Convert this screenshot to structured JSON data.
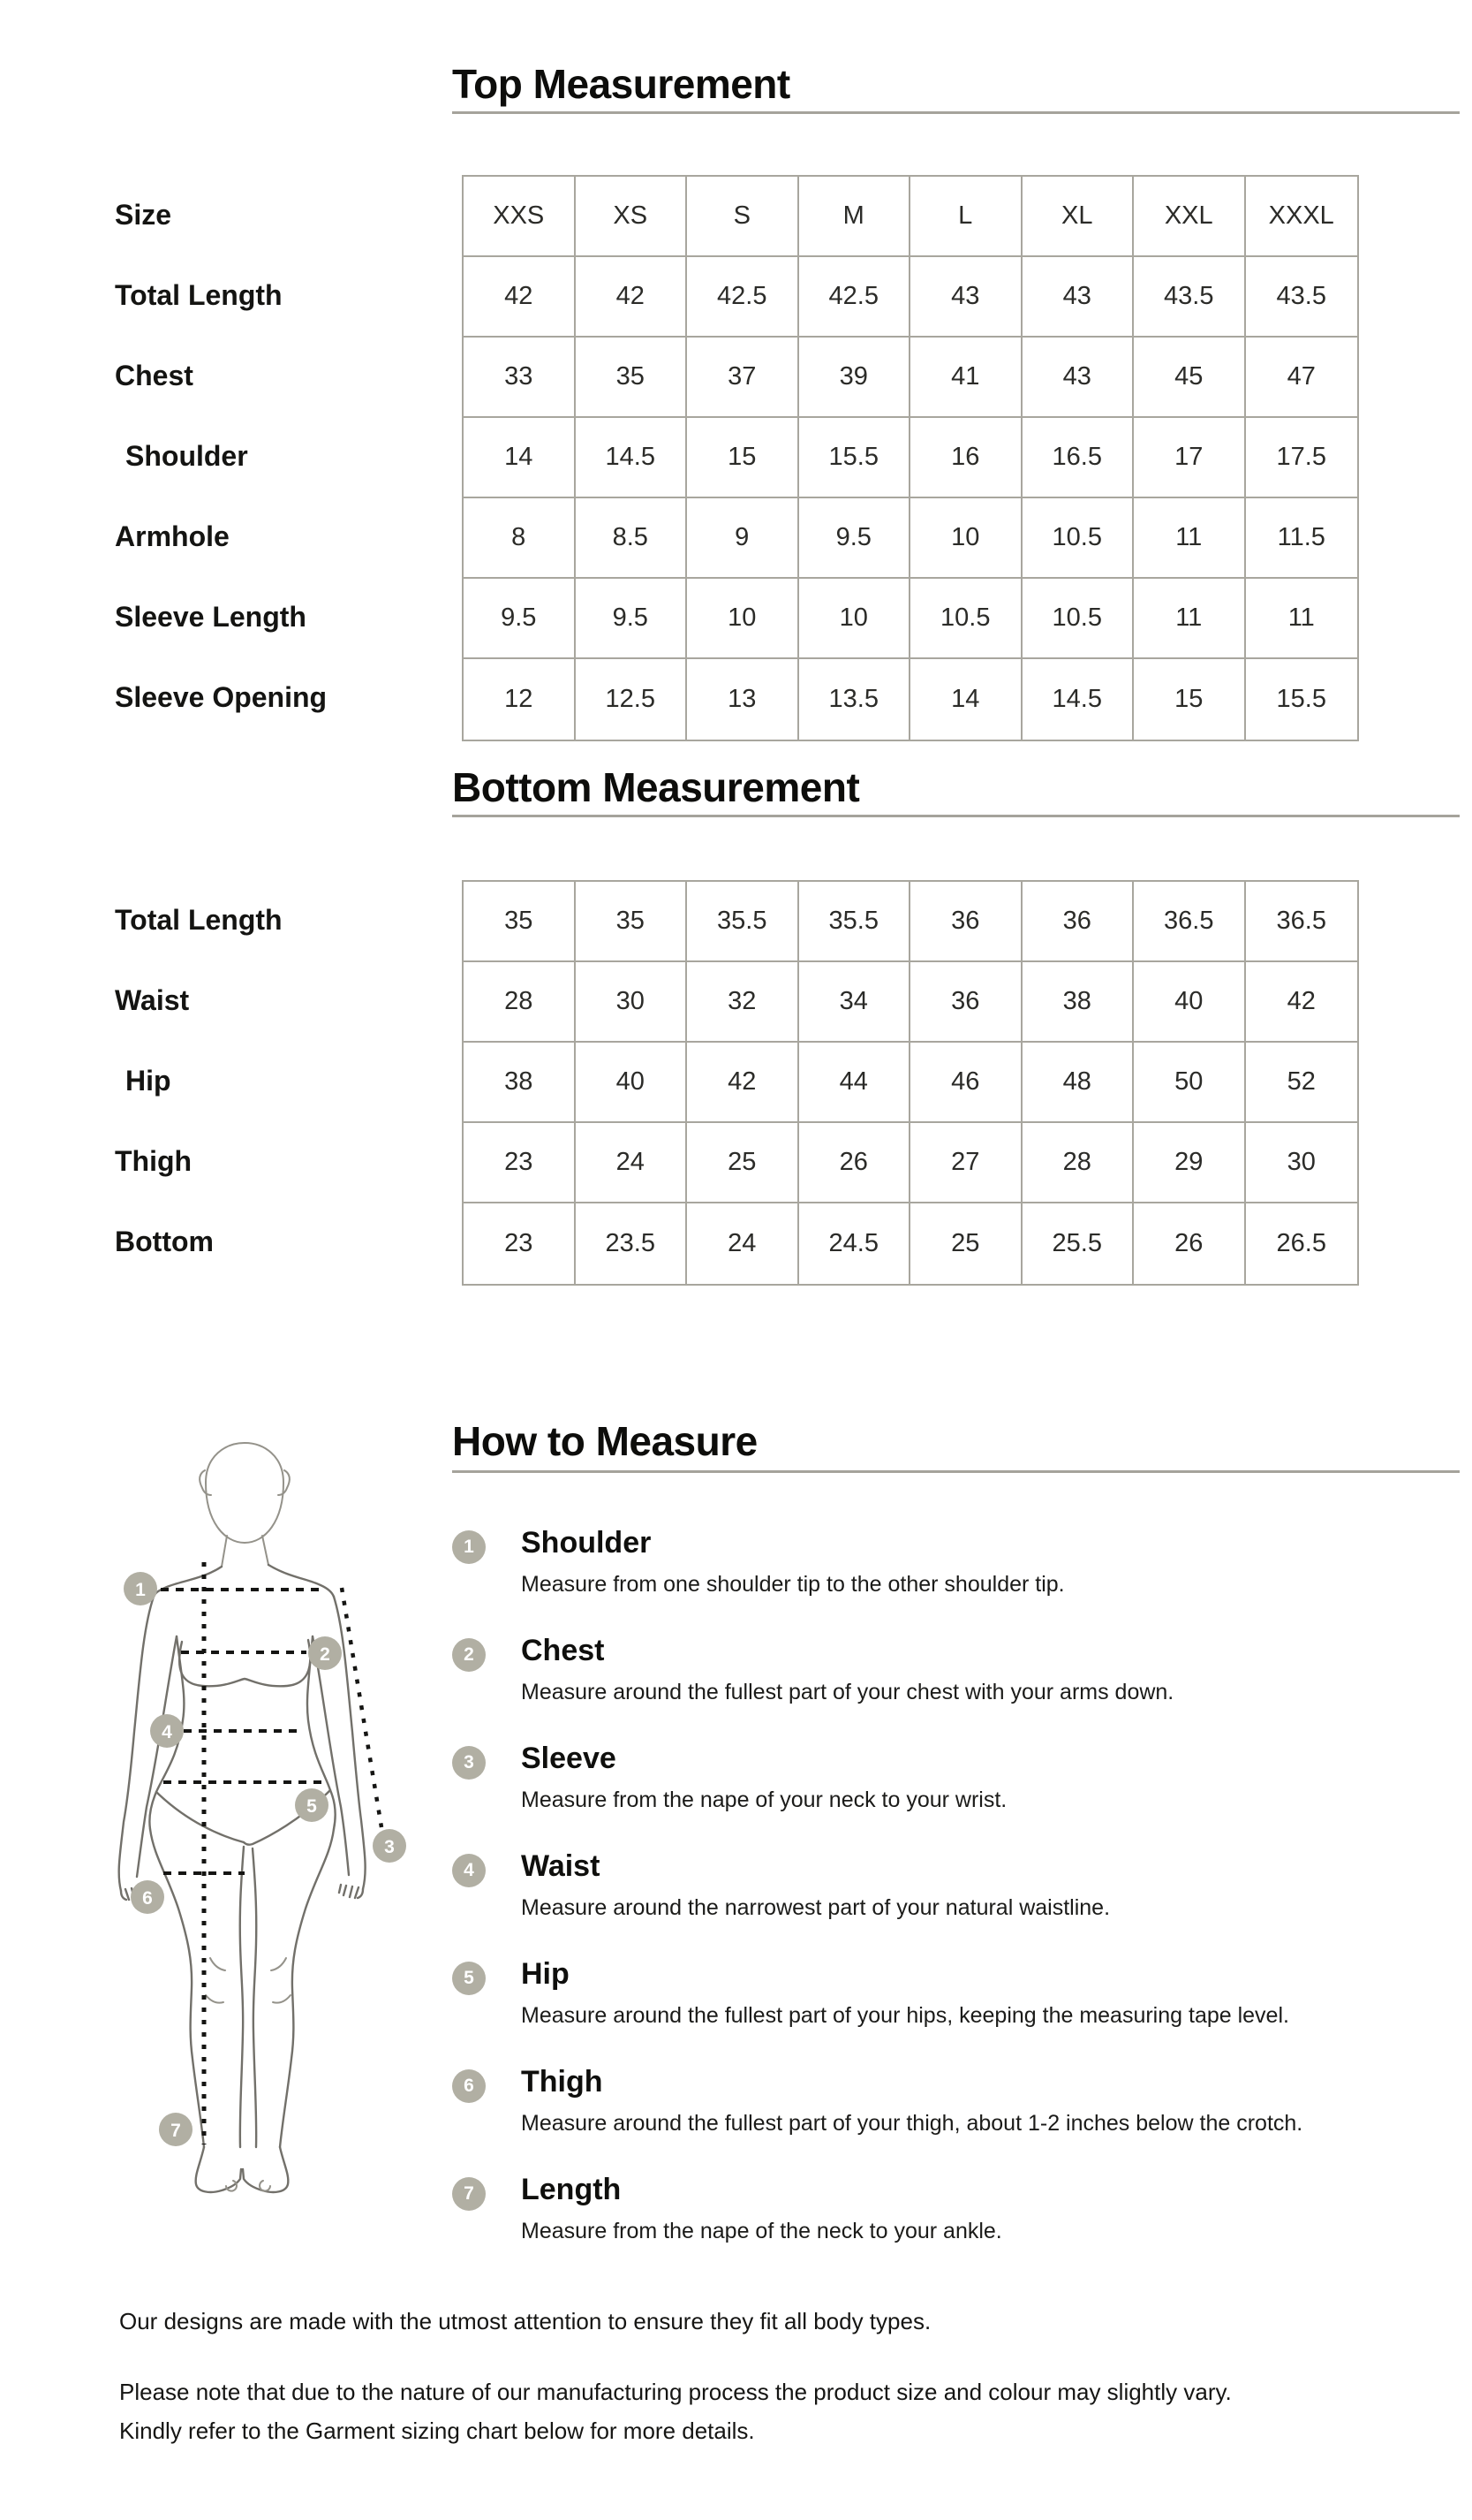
{
  "top_measurement": {
    "title": "Top Measurement",
    "row_labels": [
      "Size",
      "Total Length",
      "Chest",
      "Shoulder",
      "Armhole",
      "Sleeve Length",
      "Sleeve Opening"
    ],
    "grid": [
      [
        "XXS",
        "XS",
        "S",
        "M",
        "L",
        "XL",
        "XXL",
        "XXXL"
      ],
      [
        "42",
        "42",
        "42.5",
        "42.5",
        "43",
        "43",
        "43.5",
        "43.5"
      ],
      [
        "33",
        "35",
        "37",
        "39",
        "41",
        "43",
        "45",
        "47"
      ],
      [
        "14",
        "14.5",
        "15",
        "15.5",
        "16",
        "16.5",
        "17",
        "17.5"
      ],
      [
        "8",
        "8.5",
        "9",
        "9.5",
        "10",
        "10.5",
        "11",
        "11.5"
      ],
      [
        "9.5",
        "9.5",
        "10",
        "10",
        "10.5",
        "10.5",
        "11",
        "11"
      ],
      [
        "12",
        "12.5",
        "13",
        "13.5",
        "14",
        "14.5",
        "15",
        "15.5"
      ]
    ]
  },
  "bottom_measurement": {
    "title": "Bottom Measurement",
    "row_labels": [
      "Total Length",
      "Waist",
      "Hip",
      "Thigh",
      "Bottom"
    ],
    "grid": [
      [
        "35",
        "35",
        "35.5",
        "35.5",
        "36",
        "36",
        "36.5",
        "36.5"
      ],
      [
        "28",
        "30",
        "32",
        "34",
        "36",
        "38",
        "40",
        "42"
      ],
      [
        "38",
        "40",
        "42",
        "44",
        "46",
        "48",
        "50",
        "52"
      ],
      [
        "23",
        "24",
        "25",
        "26",
        "27",
        "28",
        "29",
        "30"
      ],
      [
        "23",
        "23.5",
        "24",
        "24.5",
        "25",
        "25.5",
        "26",
        "26.5"
      ]
    ]
  },
  "how_to_measure": {
    "title": "How to Measure",
    "items": [
      {
        "num": "1",
        "label": "Shoulder",
        "desc": "Measure from one shoulder tip to the other shoulder tip."
      },
      {
        "num": "2",
        "label": "Chest",
        "desc": "Measure around the fullest part of your chest with your arms down."
      },
      {
        "num": "3",
        "label": "Sleeve",
        "desc": "Measure from the nape of your neck to your wrist."
      },
      {
        "num": "4",
        "label": "Waist",
        "desc": "Measure around the narrowest part of your natural waistline."
      },
      {
        "num": "5",
        "label": "Hip",
        "desc": "Measure around the fullest part of your hips, keeping the measuring tape level."
      },
      {
        "num": "6",
        "label": "Thigh",
        "desc": "Measure around the fullest part of your thigh, about 1-2 inches below the crotch."
      },
      {
        "num": "7",
        "label": "Length",
        "desc": "Measure from the nape of the neck to your ankle."
      }
    ]
  },
  "footer": {
    "line1": "Our designs are made with the utmost attention to ensure they fit all body types.",
    "line2": "Please note that due to the nature of our manufacturing process the product size and colour may slightly vary.",
    "line3": "Kindly refer to the Garment sizing chart below for more details."
  },
  "colors": {
    "text": "#1d1d1b",
    "table_border": "#a8a69e",
    "underline": "#a5a39b",
    "marker_bg": "#b1afa3",
    "marker_text": "#ffffff",
    "body_outline": "#72706a"
  }
}
